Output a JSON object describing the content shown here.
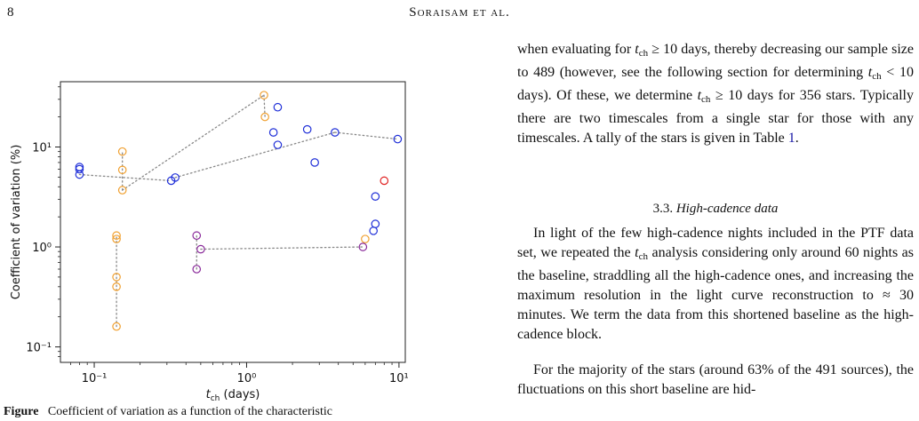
{
  "header": {
    "page_number": "8",
    "running_head": "Soraisam et al."
  },
  "figure": {
    "chart_data": {
      "type": "scatter",
      "title": "",
      "xlabel": "t_ch (days)",
      "ylabel": "Coefficient of variation (%)",
      "xscale": "log",
      "yscale": "log",
      "xlim": [
        0.06,
        11
      ],
      "ylim": [
        0.07,
        45
      ],
      "xticks": [
        0.1,
        1,
        10
      ],
      "xtick_labels": [
        "10⁻¹",
        "10⁰",
        "10¹"
      ],
      "yticks": [
        0.1,
        1,
        10
      ],
      "ytick_labels": [
        "10⁻¹",
        "10⁰",
        "10¹"
      ],
      "grid": false,
      "series": [
        {
          "color": "#f0a030",
          "points": [
            [
              0.14,
              0.16
            ],
            [
              0.14,
              0.4
            ],
            [
              0.14,
              0.5
            ],
            [
              0.14,
              1.2
            ],
            [
              0.14,
              1.3
            ],
            [
              0.153,
              3.7
            ],
            [
              0.153,
              5.9
            ],
            [
              0.153,
              9.0
            ],
            [
              1.3,
              33.0
            ],
            [
              1.32,
              20.0
            ],
            [
              6.0,
              1.2
            ]
          ],
          "connectors": [
            [
              [
                0.14,
                0.16
              ],
              [
                0.14,
                1.3
              ]
            ],
            [
              [
                0.153,
                3.7
              ],
              [
                0.153,
                9.0
              ]
            ],
            [
              [
                0.153,
                3.7
              ],
              [
                1.3,
                33.0
              ]
            ],
            [
              [
                1.3,
                33.0
              ],
              [
                1.32,
                20.0
              ]
            ]
          ]
        },
        {
          "color": "#1f2fd8",
          "points": [
            [
              0.08,
              6.3
            ],
            [
              0.08,
              6.0
            ],
            [
              0.08,
              5.3
            ],
            [
              0.32,
              4.6
            ],
            [
              0.34,
              4.95
            ],
            [
              1.5,
              14.0
            ],
            [
              1.6,
              25.0
            ],
            [
              1.6,
              10.5
            ],
            [
              2.5,
              15.0
            ],
            [
              2.8,
              7.0
            ],
            [
              3.8,
              14.0
            ],
            [
              9.8,
              12.0
            ],
            [
              7.0,
              3.2
            ],
            [
              7.0,
              1.7
            ],
            [
              6.8,
              1.45
            ]
          ],
          "connectors": [
            [
              [
                0.08,
                5.3
              ],
              [
                0.32,
                4.6
              ]
            ],
            [
              [
                0.34,
                4.95
              ],
              [
                3.8,
                14.0
              ]
            ],
            [
              [
                3.8,
                14.0
              ],
              [
                9.8,
                12.0
              ]
            ]
          ]
        },
        {
          "color": "#8a2a9a",
          "points": [
            [
              0.47,
              1.3
            ],
            [
              0.5,
              0.95
            ],
            [
              0.47,
              0.6
            ],
            [
              5.8,
              1.0
            ]
          ],
          "connectors": [
            [
              [
                0.47,
                0.6
              ],
              [
                0.47,
                1.3
              ]
            ],
            [
              [
                0.5,
                0.95
              ],
              [
                5.8,
                1.0
              ]
            ]
          ]
        },
        {
          "color": "#e02020",
          "points": [
            [
              8.0,
              4.6
            ]
          ],
          "connectors": []
        }
      ]
    }
  },
  "caption": {
    "label": "Figure",
    "text": "Coefficient of variation as a function of the characteristic"
  },
  "body": {
    "p1": "when evaluating for t_ch ≥ 10 days, thereby decreasing our sample size to 489 (however, see the following section for determining t_ch < 10 days). Of these, we determine t_ch ≥ 10 days for 356 stars. Typically there are two timescales from a single star for those with any timescales. A tally of the stars is given in Table 1.",
    "section_heading": "3.3. High-cadence data",
    "p2": "In light of the few high-cadence nights included in the PTF data set, we repeated the t_ch analysis considering only around 60 nights as the baseline, straddling all the high-cadence ones, and increasing the maximum resolution in the light curve reconstruction to ≈ 30 minutes. We term the data from this shortened baseline as the high-cadence block.",
    "p3": "For the majority of the stars (around 63% of the 491 sources), the fluctuations on this short baseline are hid-"
  }
}
